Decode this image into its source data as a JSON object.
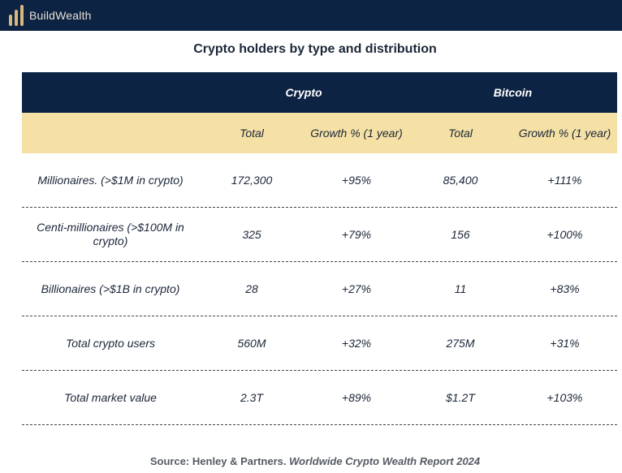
{
  "brand": {
    "name": "BuildWealth"
  },
  "title": "Crypto holders by type and distribution",
  "header": {
    "groups": [
      "Crypto",
      "Bitcoin"
    ],
    "columns": [
      "Total",
      "Growth % (1 year)",
      "Total",
      "Growth % (1 year)"
    ]
  },
  "rows": [
    {
      "label": "Millionaires. (>$1M in crypto)",
      "crypto_total": "172,300",
      "crypto_growth": "+95%",
      "btc_total": "85,400",
      "btc_growth": "+111%"
    },
    {
      "label": "Centi-millionaires (>$100M in crypto)",
      "crypto_total": "325",
      "crypto_growth": "+79%",
      "btc_total": "156",
      "btc_growth": "+100%"
    },
    {
      "label": "Billionaires (>$1B in crypto)",
      "crypto_total": "28",
      "crypto_growth": "+27%",
      "btc_total": "11",
      "btc_growth": "+83%"
    },
    {
      "label": "Total crypto users",
      "crypto_total": "560M",
      "crypto_growth": "+32%",
      "btc_total": "275M",
      "btc_growth": "+31%"
    },
    {
      "label": "Total market value",
      "crypto_total": "2.3T",
      "crypto_growth": "+89%",
      "btc_total": "$1.2T",
      "btc_growth": "+103%"
    }
  ],
  "source": {
    "label": "Source:",
    "publisher": "Henley & Partners.",
    "report": "Worldwide Crypto Wealth Report 2024"
  },
  "colors": {
    "navy": "#0d2344",
    "gold": "#d9b779",
    "header_band": "#f5e1a5"
  }
}
